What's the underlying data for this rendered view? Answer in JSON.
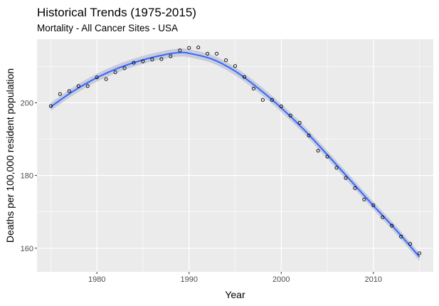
{
  "chart_data": {
    "type": "scatter",
    "title": "Historical Trends (1975-2015)",
    "subtitle": "Mortality - All Cancer Sites - USA",
    "xlabel": "Year",
    "ylabel": "Deaths per 100,000 resident population",
    "xlim": [
      1973.5,
      2016.5
    ],
    "ylim": [
      153.5,
      217.5
    ],
    "xticks": [
      1980,
      1990,
      2000,
      2010
    ],
    "yticks": [
      160,
      180,
      200
    ],
    "grid": true,
    "colors": {
      "panel": "#ebebeb",
      "grid": "#ffffff",
      "smooth": "#3366ff",
      "band": "#c3c8d8",
      "points": "#000000"
    },
    "x": [
      1975,
      1976,
      1977,
      1978,
      1979,
      1980,
      1981,
      1982,
      1983,
      1984,
      1985,
      1986,
      1987,
      1988,
      1989,
      1990,
      1991,
      1992,
      1993,
      1994,
      1995,
      1996,
      1997,
      1998,
      1999,
      2000,
      2001,
      2002,
      2003,
      2004,
      2005,
      2006,
      2007,
      2008,
      2009,
      2010,
      2011,
      2012,
      2013,
      2014,
      2015
    ],
    "values": [
      199.1,
      202.4,
      203.2,
      204.6,
      204.6,
      207.0,
      206.5,
      208.4,
      209.5,
      211.0,
      211.4,
      211.9,
      212.0,
      212.8,
      214.4,
      215.1,
      215.2,
      213.5,
      213.5,
      211.7,
      210.1,
      207.1,
      203.9,
      200.8,
      200.8,
      199.0,
      196.5,
      194.5,
      191.0,
      186.8,
      185.2,
      182.1,
      179.3,
      176.5,
      173.4,
      171.8,
      168.5,
      166.2,
      163.2,
      161.2,
      158.6
    ],
    "smooth": {
      "x": [
        1975,
        1977.5,
        1980,
        1982.5,
        1985,
        1987.5,
        1989,
        1990,
        1992.5,
        1995,
        1997.5,
        2000,
        2002.5,
        2005,
        2007.5,
        2010,
        2012.5,
        2015
      ],
      "y": [
        198.9,
        203.3,
        206.9,
        209.7,
        211.8,
        213.3,
        213.8,
        213.6,
        212.0,
        208.7,
        204.0,
        198.6,
        192.5,
        185.7,
        178.7,
        171.7,
        164.9,
        157.6
      ],
      "band": 1.1
    }
  }
}
